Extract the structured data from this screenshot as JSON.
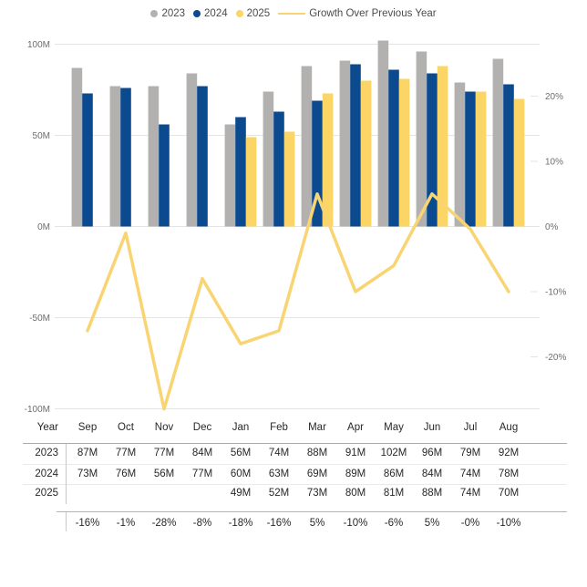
{
  "legend": {
    "items": [
      {
        "label": "2023",
        "color": "#B2B1B0",
        "swatch": "dot"
      },
      {
        "label": "2024",
        "color": "#0C4A8F",
        "swatch": "dot"
      },
      {
        "label": "2025",
        "color": "#FBD566",
        "swatch": "dot"
      },
      {
        "label": "Growth Over Previous Year",
        "color": "#F9D472",
        "swatch": "line"
      }
    ]
  },
  "chart_data": {
    "type": "combo-bar-line",
    "categories": [
      "Sep",
      "Oct",
      "Nov",
      "Dec",
      "Jan",
      "Feb",
      "Mar",
      "Apr",
      "May",
      "Jun",
      "Jul",
      "Aug"
    ],
    "series": [
      {
        "name": "2023",
        "type": "bar",
        "color": "#B2B1B0",
        "values": [
          87,
          77,
          77,
          84,
          56,
          74,
          88,
          91,
          102,
          96,
          79,
          92
        ]
      },
      {
        "name": "2024",
        "type": "bar",
        "color": "#0C4A8F",
        "values": [
          73,
          76,
          56,
          77,
          60,
          63,
          69,
          89,
          86,
          84,
          74,
          78
        ]
      },
      {
        "name": "2025",
        "type": "bar",
        "color": "#FBD566",
        "values": [
          null,
          null,
          null,
          null,
          49,
          52,
          73,
          80,
          81,
          88,
          74,
          70
        ]
      },
      {
        "name": "Growth Over Previous Year",
        "type": "line",
        "axis": "right",
        "color": "#F9D472",
        "values": [
          -16,
          -1,
          -28,
          -8,
          -18,
          -16,
          5,
          -10,
          -6,
          5,
          -0.4,
          -10
        ]
      }
    ],
    "value_unit": "M",
    "left_axis": {
      "min": -100,
      "max": 100,
      "tick_labels": [
        "100M",
        "50M",
        "0M",
        "-50M",
        "-100M"
      ]
    },
    "right_axis": {
      "min": -28,
      "max": 28,
      "tick_labels": [
        "20%",
        "10%",
        "0%",
        "-10%",
        "-20%"
      ]
    },
    "grid": true,
    "legend_position": "top-center"
  },
  "table": {
    "year_header": "Year",
    "months": [
      "Sep",
      "Oct",
      "Nov",
      "Dec",
      "Jan",
      "Feb",
      "Mar",
      "Apr",
      "May",
      "Jun",
      "Jul",
      "Aug"
    ],
    "rows": [
      {
        "year": "2023",
        "values": [
          "87M",
          "77M",
          "77M",
          "84M",
          "56M",
          "74M",
          "88M",
          "91M",
          "102M",
          "96M",
          "79M",
          "92M"
        ]
      },
      {
        "year": "2024",
        "values": [
          "73M",
          "76M",
          "56M",
          "77M",
          "60M",
          "63M",
          "69M",
          "89M",
          "86M",
          "84M",
          "74M",
          "78M"
        ]
      },
      {
        "year": "2025",
        "values": [
          "",
          "",
          "",
          "",
          "49M",
          "52M",
          "73M",
          "80M",
          "81M",
          "88M",
          "74M",
          "70M"
        ]
      }
    ],
    "growth_row": {
      "values": [
        "-16%",
        "-1%",
        "-28%",
        "-8%",
        "-18%",
        "-16%",
        "5%",
        "-10%",
        "-6%",
        "5%",
        "-0%",
        "-10%"
      ]
    }
  }
}
